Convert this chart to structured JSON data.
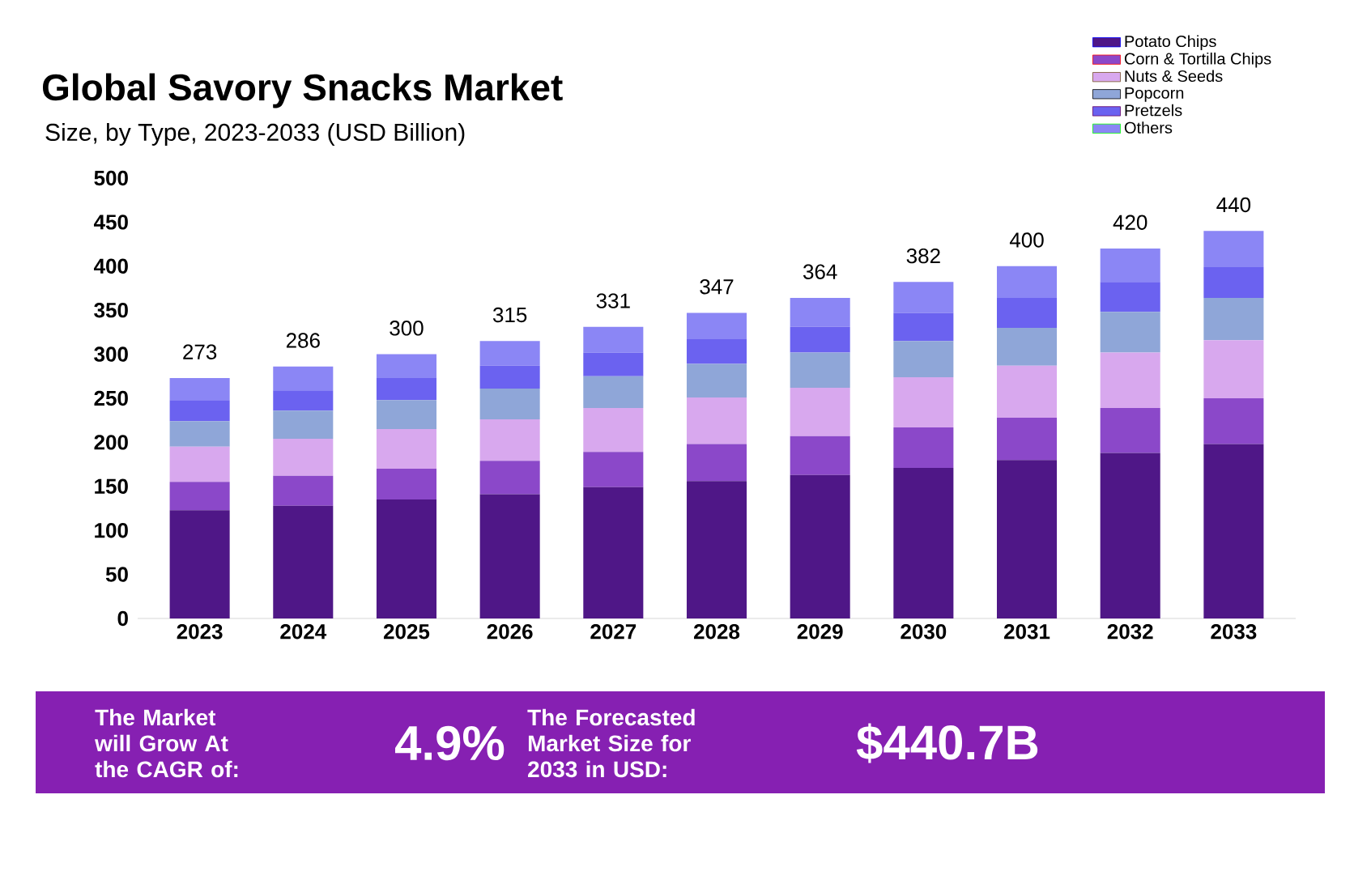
{
  "chart_data": {
    "type": "bar",
    "title": "Global Savory Snacks Market",
    "subtitle": "Size, by Type, 2023-2033 (USD Billion)",
    "categories": [
      "2023",
      "2024",
      "2025",
      "2026",
      "2027",
      "2028",
      "2029",
      "2030",
      "2031",
      "2032",
      "2033"
    ],
    "stacked": true,
    "ylim": [
      0,
      500
    ],
    "yticks": [
      0,
      50,
      100,
      150,
      200,
      250,
      300,
      350,
      400,
      450,
      500
    ],
    "grid": false,
    "legend": "top right",
    "series": [
      {
        "name": "Potato Chips",
        "color": "#4f1787",
        "values": [
          123,
          128,
          135,
          141,
          149,
          156,
          163,
          171,
          180,
          188,
          198
        ]
      },
      {
        "name": "Corn & Tortilla Chips",
        "color": "#8b48c9",
        "values": [
          32,
          34,
          35,
          38,
          40,
          42,
          44,
          46,
          48,
          51,
          52
        ]
      },
      {
        "name": "Nuts & Seeds",
        "color": "#d8a8ee",
        "values": [
          40,
          42,
          45,
          47,
          50,
          53,
          55,
          57,
          59,
          63,
          66
        ]
      },
      {
        "name": "Popcorn",
        "color": "#8fa6d8",
        "values": [
          29,
          32,
          33,
          35,
          36,
          38,
          40,
          41,
          43,
          46,
          48
        ]
      },
      {
        "name": "Pretzels",
        "color": "#6b62f0",
        "values": [
          24,
          23,
          25,
          26,
          27,
          28,
          29,
          32,
          34,
          34,
          35
        ]
      },
      {
        "name": "Others",
        "color": "#8b86f5",
        "values": [
          25,
          27,
          27,
          28,
          29,
          30,
          33,
          35,
          36,
          38,
          41
        ]
      }
    ],
    "totals": [
      "273",
      "286",
      "300",
      "315",
      "331",
      "347",
      "364",
      "382",
      "400",
      "420",
      "440"
    ],
    "annotations": [
      "The Market will Grow At the CAGR of:",
      "4.9%",
      "The Forecasted Market Size for 2033 in USD:",
      "$440.7B"
    ]
  }
}
